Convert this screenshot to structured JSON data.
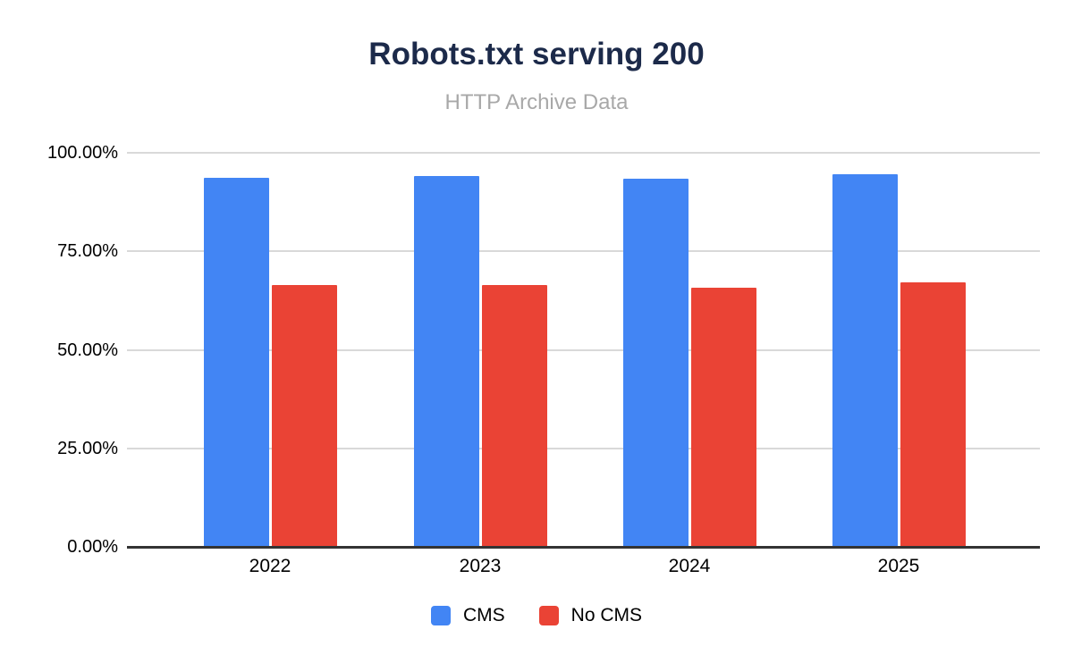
{
  "chart_data": {
    "type": "bar",
    "title": "Robots.txt serving 200",
    "subtitle": "HTTP Archive Data",
    "categories": [
      "2022",
      "2023",
      "2024",
      "2025"
    ],
    "series": [
      {
        "name": "CMS",
        "color": "#4285f4",
        "values": [
          93.5,
          93.8,
          93.3,
          94.3
        ]
      },
      {
        "name": "No CMS",
        "color": "#ea4335",
        "values": [
          66.3,
          66.2,
          65.5,
          66.9
        ]
      }
    ],
    "y_axis": {
      "tick_labels": [
        "0.00%",
        "25.00%",
        "50.00%",
        "75.00%",
        "100.00%"
      ],
      "tick_values": [
        0,
        25,
        50,
        75,
        100
      ],
      "min": 0,
      "max": 100
    },
    "grid": true,
    "legend_position": "bottom"
  },
  "colors": {
    "title": "#1c2a4a",
    "subtitle": "#a8a8a8",
    "axis_text": "#000000",
    "gridline": "#d9d9d9",
    "axis_line": "#333333",
    "background": "#ffffff",
    "cms_bar": "#4285f4",
    "no_cms_bar": "#ea4335"
  }
}
